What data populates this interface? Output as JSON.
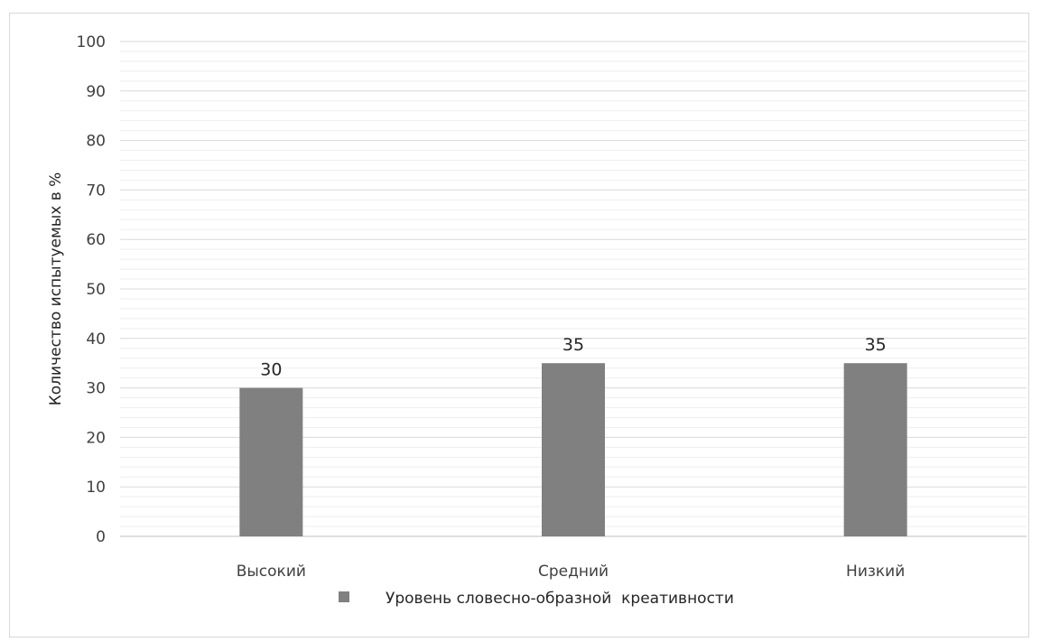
{
  "chart_data": {
    "type": "bar",
    "title": "",
    "xlabel": "",
    "ylabel": "Количество испытуемых в %",
    "ylim": [
      0,
      100
    ],
    "ytick_step": 10,
    "yticks": [
      "0",
      "10",
      "20",
      "30",
      "40",
      "50",
      "60",
      "70",
      "80",
      "90",
      "100"
    ],
    "minor_gridlines": true,
    "categories": [
      "Высокий",
      "Средний",
      "Низкий"
    ],
    "series": [
      {
        "name": "Уровень словесно-образной  креативности",
        "values": [
          30,
          35,
          35
        ],
        "color": "#808080"
      }
    ],
    "data_labels": [
      "30",
      "35",
      "35"
    ],
    "legend_position": "bottom",
    "grid": true
  }
}
